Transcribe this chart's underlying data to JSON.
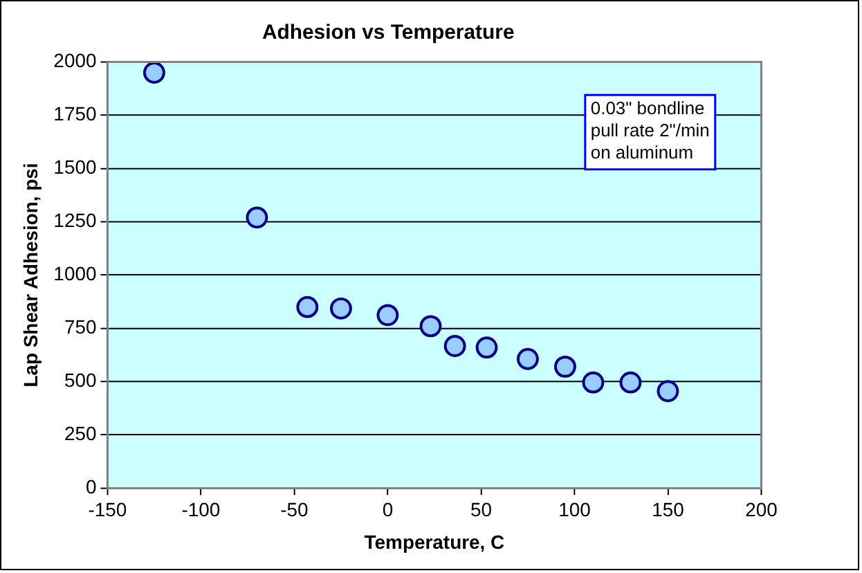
{
  "chart_data": {
    "type": "scatter",
    "title": "Adhesion vs Temperature",
    "xlabel": "Temperature, C",
    "ylabel": "Lap Shear Adhesion, psi",
    "x": [
      -125,
      -70,
      -43,
      -25,
      0,
      23,
      36,
      53,
      75,
      95,
      110,
      130,
      150
    ],
    "series": [
      {
        "color": "#99ccff",
        "values": [
          1950,
          1270,
          850,
          843,
          812,
          760,
          667,
          660,
          606,
          570,
          496,
          496,
          455
        ]
      }
    ],
    "xlim": [
      -150,
      200
    ],
    "xticks": [
      -150,
      -100,
      -50,
      0,
      50,
      100,
      150,
      200
    ],
    "ylim": [
      0,
      2000
    ],
    "yticks": [
      0,
      250,
      500,
      750,
      1000,
      1250,
      1500,
      1750,
      2000
    ],
    "grid": "y",
    "legend": false,
    "marker": "circle",
    "annotations": [
      "0.03\" bondline\npull rate 2\"/min\non aluminum"
    ]
  }
}
